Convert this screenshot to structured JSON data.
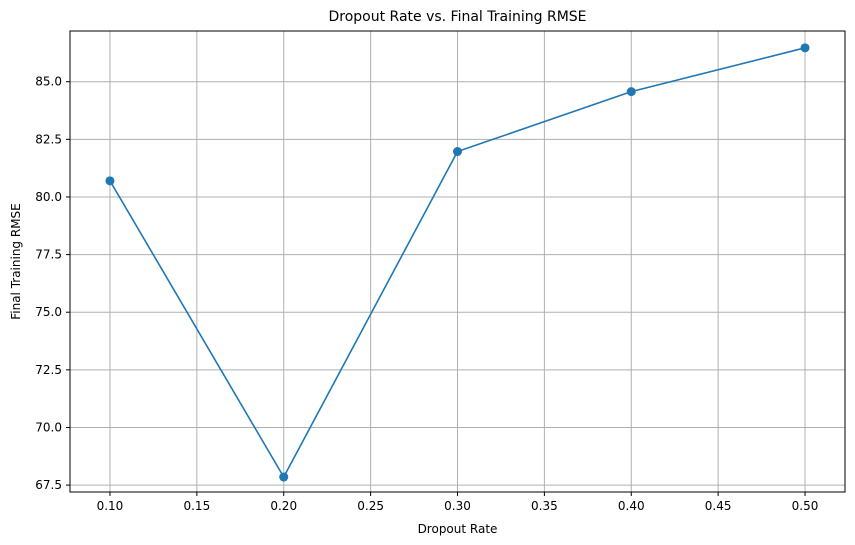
{
  "chart_data": {
    "type": "line",
    "title": "Dropout Rate vs. Final Training RMSE",
    "xlabel": "Dropout Rate",
    "ylabel": "Final Training RMSE",
    "x": [
      0.1,
      0.2,
      0.3,
      0.4,
      0.5
    ],
    "series": [
      {
        "values": [
          80.7,
          67.85,
          81.97,
          84.57,
          86.47
        ],
        "color": "#1f77b4",
        "marker": "circle"
      }
    ],
    "xlim": [
      0.077,
      0.523
    ],
    "ylim": [
      67.2,
      87.2
    ],
    "xticks": [
      0.1,
      0.15,
      0.2,
      0.25,
      0.3,
      0.35,
      0.4,
      0.45,
      0.5
    ],
    "xtick_labels": [
      "0.10",
      "0.15",
      "0.20",
      "0.25",
      "0.30",
      "0.35",
      "0.40",
      "0.45",
      "0.50"
    ],
    "yticks": [
      67.5,
      70.0,
      72.5,
      75.0,
      77.5,
      80.0,
      82.5,
      85.0
    ],
    "ytick_labels": [
      "67.5",
      "70.0",
      "72.5",
      "75.0",
      "77.5",
      "80.0",
      "82.5",
      "85.0"
    ],
    "grid": true,
    "grid_color": "#b0b0b0"
  }
}
